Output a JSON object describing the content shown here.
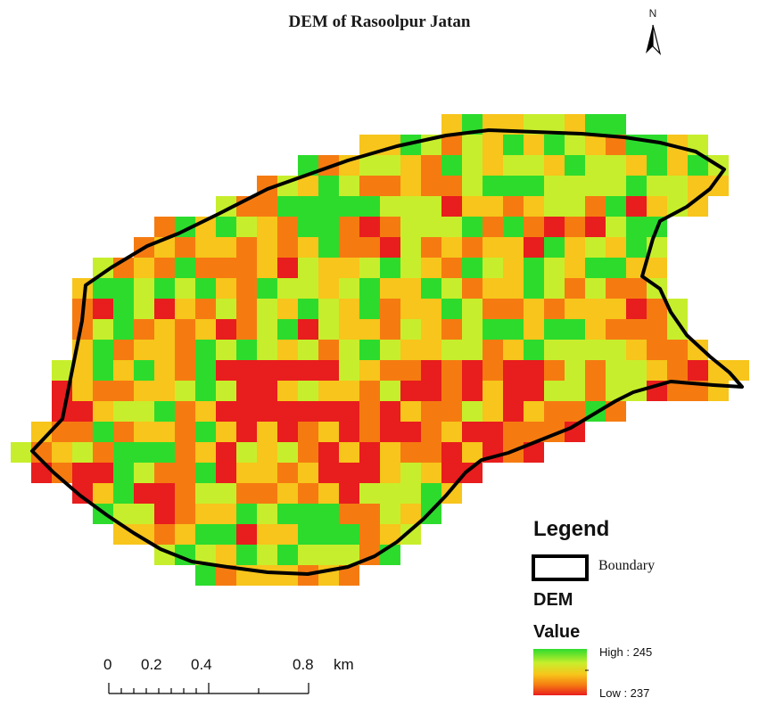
{
  "map": {
    "title": "DEM of Rasoolpur Jatan",
    "north_arrow": {
      "label": "N",
      "icon": "north-arrow-icon"
    },
    "colors": {
      "low": "#e81d1d",
      "mid_low": "#f57b11",
      "mid": "#f7c51b",
      "mid_high": "#c7ee2c",
      "high": "#2ddb2d",
      "boundary": "#000000"
    }
  },
  "legend": {
    "title": "Legend",
    "boundary_label": "Boundary",
    "layer_name": "DEM",
    "value_heading": "Value",
    "high_label": "High : 245",
    "low_label": "Low : 237",
    "high_value": 245,
    "low_value": 237
  },
  "scale_bar": {
    "labels": [
      "0",
      "0.2",
      "0.4",
      "0.8"
    ],
    "unit": "km"
  }
}
